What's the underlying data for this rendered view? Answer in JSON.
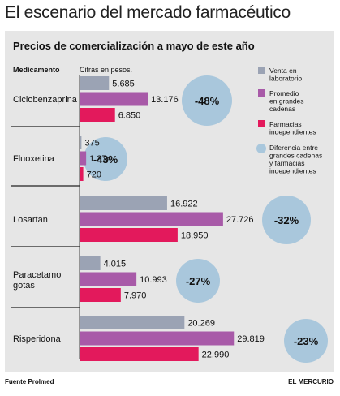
{
  "title": "El escenario del mercado farmacéutico",
  "subtitle": "Precios de comercialización a mayo de este año",
  "column_header": "Medicamento",
  "unit_note": "Cifras en pesos.",
  "source": "Fuente Prolmed",
  "credit": "EL MERCURIO",
  "colors": {
    "laboratorio": "#9ba3b4",
    "cadenas": "#a85aa8",
    "farmacias": "#e3195c",
    "diferencia": "#a9c7dc",
    "panel": "#e6e6e6"
  },
  "chart_data": {
    "type": "bar",
    "orientation": "horizontal",
    "categories": [
      "Ciclobenzaprina",
      "Fluoxetina",
      "Losartan",
      "Paracetamol gotas",
      "Risperidona"
    ],
    "series": [
      {
        "name": "Venta en laboratorio",
        "values": [
          "5.685",
          "375",
          "16.922",
          "4.015",
          "20.269"
        ],
        "numeric": [
          5685,
          375,
          16922,
          4015,
          20269
        ]
      },
      {
        "name": "Promedio en grandes cadenas",
        "values": [
          "13.176",
          "1.274",
          "27.726",
          "10.993",
          "29.819"
        ],
        "numeric": [
          13176,
          1274,
          27726,
          10993,
          29819
        ]
      },
      {
        "name": "Farmacias independientes",
        "values": [
          "6.850",
          "720",
          "18.950",
          "7.970",
          "22.990"
        ],
        "numeric": [
          6850,
          720,
          18950,
          7970,
          22990
        ]
      }
    ],
    "difference": {
      "name": "Diferencia entre grandes cadenas y farmacias independientes",
      "values": [
        "-48%",
        "-43%",
        "-32%",
        "-27%",
        "-23%"
      ]
    },
    "legend_position": "right",
    "grid": false
  }
}
